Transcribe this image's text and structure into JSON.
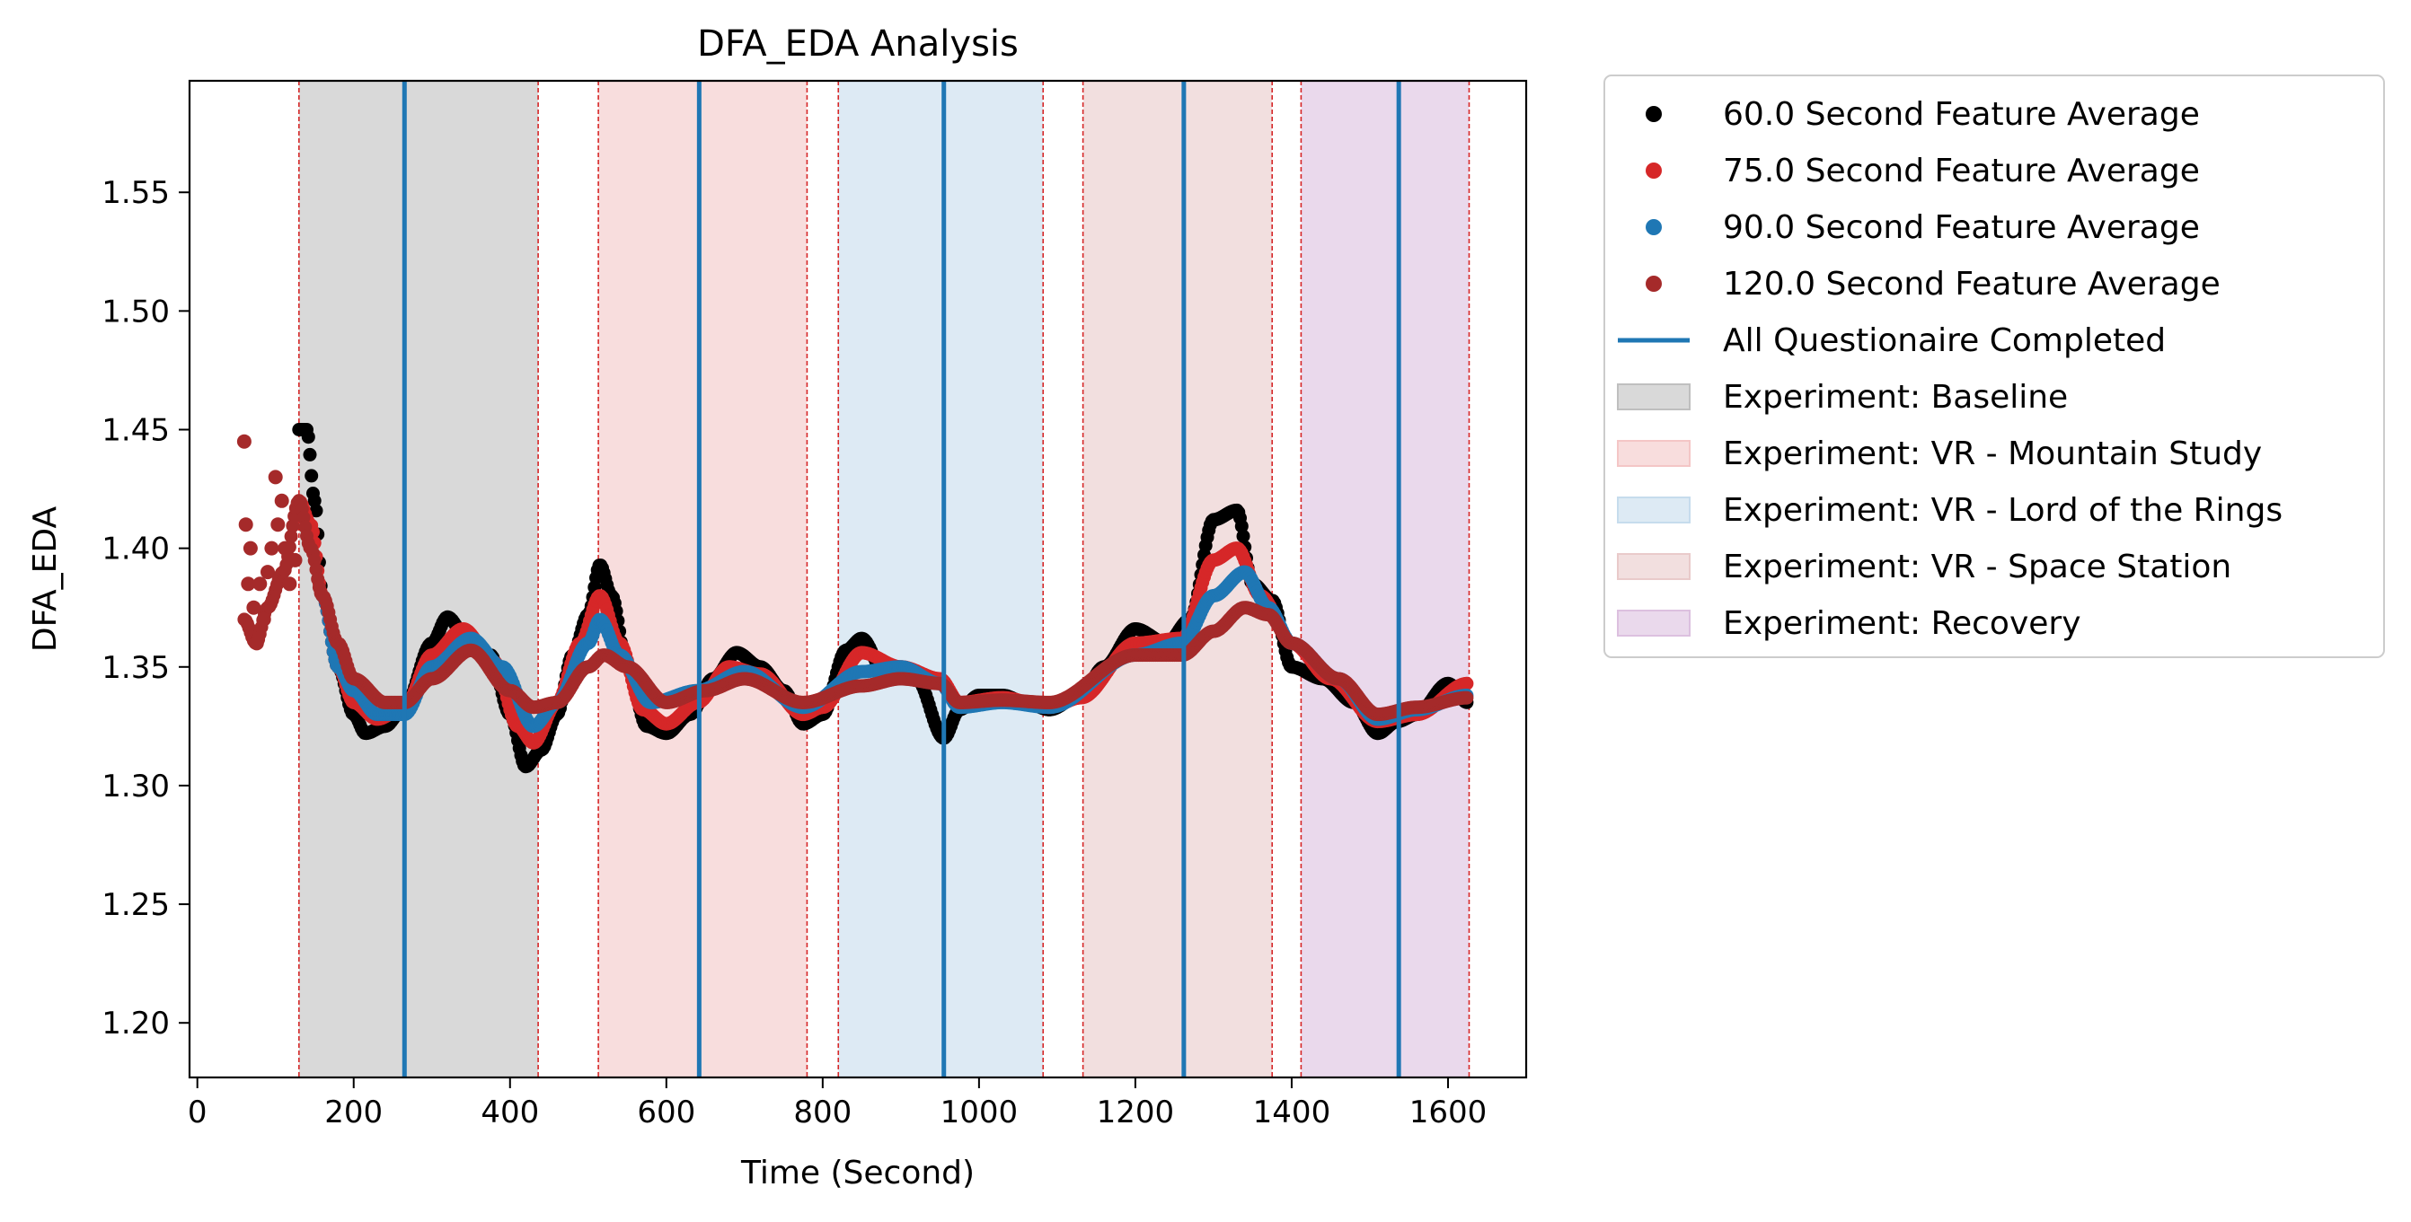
{
  "chart_data": {
    "type": "scatter",
    "title": "DFA_EDA Analysis",
    "xlabel": "Time (Second)",
    "ylabel": "DFA_EDA",
    "xlim": [
      -10,
      1700
    ],
    "ylim": [
      1.177,
      1.597
    ],
    "xticks": [
      0,
      200,
      400,
      600,
      800,
      1000,
      1200,
      1400,
      1600
    ],
    "yticks": [
      1.2,
      1.25,
      1.3,
      1.35,
      1.4,
      1.45,
      1.5,
      1.55
    ],
    "ytick_labels": [
      "1.20",
      "1.25",
      "1.30",
      "1.35",
      "1.40",
      "1.45",
      "1.50",
      "1.55"
    ],
    "legend_position": "outside right",
    "series": [
      {
        "name": "60.0 Second Feature Average",
        "color": "#000000",
        "x_range": [
          130,
          1625
        ],
        "keypoints": [
          [
            130,
            1.45
          ],
          [
            140,
            1.45
          ],
          [
            150,
            1.42
          ],
          [
            160,
            1.38
          ],
          [
            180,
            1.35
          ],
          [
            200,
            1.33
          ],
          [
            215,
            1.322
          ],
          [
            240,
            1.325
          ],
          [
            265,
            1.333
          ],
          [
            300,
            1.36
          ],
          [
            320,
            1.371
          ],
          [
            345,
            1.362
          ],
          [
            375,
            1.355
          ],
          [
            400,
            1.33
          ],
          [
            420,
            1.308
          ],
          [
            440,
            1.315
          ],
          [
            460,
            1.33
          ],
          [
            480,
            1.355
          ],
          [
            500,
            1.372
          ],
          [
            515,
            1.393
          ],
          [
            530,
            1.38
          ],
          [
            550,
            1.35
          ],
          [
            575,
            1.325
          ],
          [
            600,
            1.322
          ],
          [
            630,
            1.33
          ],
          [
            660,
            1.345
          ],
          [
            690,
            1.356
          ],
          [
            720,
            1.35
          ],
          [
            750,
            1.34
          ],
          [
            775,
            1.326
          ],
          [
            800,
            1.33
          ],
          [
            830,
            1.357
          ],
          [
            850,
            1.362
          ],
          [
            880,
            1.347
          ],
          [
            920,
            1.345
          ],
          [
            955,
            1.32
          ],
          [
            975,
            1.332
          ],
          [
            1000,
            1.338
          ],
          [
            1030,
            1.338
          ],
          [
            1060,
            1.335
          ],
          [
            1090,
            1.332
          ],
          [
            1130,
            1.338
          ],
          [
            1160,
            1.35
          ],
          [
            1200,
            1.366
          ],
          [
            1240,
            1.36
          ],
          [
            1270,
            1.37
          ],
          [
            1300,
            1.412
          ],
          [
            1330,
            1.416
          ],
          [
            1350,
            1.385
          ],
          [
            1375,
            1.378
          ],
          [
            1400,
            1.35
          ],
          [
            1440,
            1.345
          ],
          [
            1480,
            1.335
          ],
          [
            1510,
            1.322
          ],
          [
            1535,
            1.327
          ],
          [
            1560,
            1.33
          ],
          [
            1600,
            1.343
          ],
          [
            1625,
            1.335
          ]
        ]
      },
      {
        "name": "75.0 Second Feature Average",
        "color": "#d62728",
        "x_range": [
          130,
          1625
        ],
        "keypoints": [
          [
            130,
            1.42
          ],
          [
            145,
            1.41
          ],
          [
            160,
            1.38
          ],
          [
            180,
            1.35
          ],
          [
            200,
            1.335
          ],
          [
            230,
            1.328
          ],
          [
            265,
            1.333
          ],
          [
            300,
            1.355
          ],
          [
            340,
            1.366
          ],
          [
            380,
            1.352
          ],
          [
            410,
            1.325
          ],
          [
            430,
            1.318
          ],
          [
            460,
            1.335
          ],
          [
            490,
            1.36
          ],
          [
            515,
            1.38
          ],
          [
            540,
            1.36
          ],
          [
            570,
            1.332
          ],
          [
            600,
            1.326
          ],
          [
            640,
            1.335
          ],
          [
            680,
            1.35
          ],
          [
            720,
            1.347
          ],
          [
            775,
            1.33
          ],
          [
            800,
            1.333
          ],
          [
            850,
            1.356
          ],
          [
            900,
            1.35
          ],
          [
            950,
            1.345
          ],
          [
            975,
            1.335
          ],
          [
            1030,
            1.337
          ],
          [
            1090,
            1.333
          ],
          [
            1130,
            1.337
          ],
          [
            1200,
            1.36
          ],
          [
            1260,
            1.362
          ],
          [
            1300,
            1.395
          ],
          [
            1330,
            1.4
          ],
          [
            1360,
            1.38
          ],
          [
            1400,
            1.36
          ],
          [
            1450,
            1.345
          ],
          [
            1510,
            1.327
          ],
          [
            1560,
            1.33
          ],
          [
            1625,
            1.343
          ]
        ]
      },
      {
        "name": "90.0 Second Feature Average",
        "color": "#1f77b4",
        "x_range": [
          160,
          1625
        ],
        "keypoints": [
          [
            160,
            1.38
          ],
          [
            180,
            1.35
          ],
          [
            200,
            1.34
          ],
          [
            230,
            1.33
          ],
          [
            265,
            1.33
          ],
          [
            300,
            1.35
          ],
          [
            350,
            1.362
          ],
          [
            390,
            1.35
          ],
          [
            430,
            1.325
          ],
          [
            460,
            1.335
          ],
          [
            500,
            1.36
          ],
          [
            515,
            1.37
          ],
          [
            540,
            1.355
          ],
          [
            580,
            1.335
          ],
          [
            640,
            1.34
          ],
          [
            700,
            1.348
          ],
          [
            775,
            1.333
          ],
          [
            850,
            1.348
          ],
          [
            900,
            1.35
          ],
          [
            950,
            1.343
          ],
          [
            975,
            1.333
          ],
          [
            1030,
            1.335
          ],
          [
            1090,
            1.333
          ],
          [
            1200,
            1.355
          ],
          [
            1260,
            1.36
          ],
          [
            1300,
            1.38
          ],
          [
            1340,
            1.39
          ],
          [
            1370,
            1.375
          ],
          [
            1400,
            1.36
          ],
          [
            1460,
            1.345
          ],
          [
            1510,
            1.328
          ],
          [
            1560,
            1.332
          ],
          [
            1625,
            1.338
          ]
        ]
      },
      {
        "name": "120.0 Second Feature Average",
        "color": "#a52a2a",
        "x_range": [
          60,
          1625
        ],
        "keypoints": [
          [
            60,
            1.37
          ],
          [
            75,
            1.36
          ],
          [
            90,
            1.375
          ],
          [
            110,
            1.39
          ],
          [
            130,
            1.42
          ],
          [
            145,
            1.4
          ],
          [
            160,
            1.38
          ],
          [
            180,
            1.36
          ],
          [
            200,
            1.345
          ],
          [
            240,
            1.335
          ],
          [
            265,
            1.335
          ],
          [
            300,
            1.345
          ],
          [
            350,
            1.357
          ],
          [
            400,
            1.34
          ],
          [
            430,
            1.333
          ],
          [
            460,
            1.335
          ],
          [
            500,
            1.35
          ],
          [
            520,
            1.355
          ],
          [
            550,
            1.35
          ],
          [
            600,
            1.335
          ],
          [
            650,
            1.34
          ],
          [
            700,
            1.345
          ],
          [
            775,
            1.335
          ],
          [
            850,
            1.342
          ],
          [
            900,
            1.345
          ],
          [
            950,
            1.343
          ],
          [
            975,
            1.335
          ],
          [
            1030,
            1.336
          ],
          [
            1090,
            1.335
          ],
          [
            1200,
            1.355
          ],
          [
            1260,
            1.355
          ],
          [
            1300,
            1.365
          ],
          [
            1340,
            1.375
          ],
          [
            1370,
            1.372
          ],
          [
            1400,
            1.36
          ],
          [
            1460,
            1.345
          ],
          [
            1510,
            1.33
          ],
          [
            1560,
            1.333
          ],
          [
            1625,
            1.337
          ]
        ],
        "early_points": [
          [
            60,
            1.445
          ],
          [
            62,
            1.41
          ],
          [
            65,
            1.385
          ],
          [
            68,
            1.4
          ],
          [
            72,
            1.375
          ],
          [
            76,
            1.36
          ],
          [
            80,
            1.385
          ],
          [
            85,
            1.37
          ],
          [
            90,
            1.39
          ],
          [
            95,
            1.4
          ],
          [
            100,
            1.43
          ],
          [
            103,
            1.41
          ],
          [
            108,
            1.42
          ],
          [
            112,
            1.4
          ],
          [
            118,
            1.385
          ],
          [
            125,
            1.395
          ]
        ]
      }
    ],
    "questionnaire_lines": {
      "name": "All Questionaire Completed",
      "color": "#1f77b4",
      "x": [
        265,
        642,
        955,
        1262,
        1537
      ]
    },
    "experiments": [
      {
        "name": "Experiment: Baseline",
        "start": 130,
        "end": 436,
        "color": "#bfbfbf"
      },
      {
        "name": "Experiment: VR - Mountain Study",
        "start": 513,
        "end": 780,
        "color": "#f4c6c6"
      },
      {
        "name": "Experiment: VR - Lord of the Rings",
        "start": 820,
        "end": 1082,
        "color": "#c6dced"
      },
      {
        "name": "Experiment: VR - Space Station",
        "start": 1133,
        "end": 1375,
        "color": "#e9caca"
      },
      {
        "name": "Experiment: Recovery",
        "start": 1412,
        "end": 1627,
        "color": "#dcc0df"
      }
    ],
    "boundary_color": "#d62728"
  }
}
